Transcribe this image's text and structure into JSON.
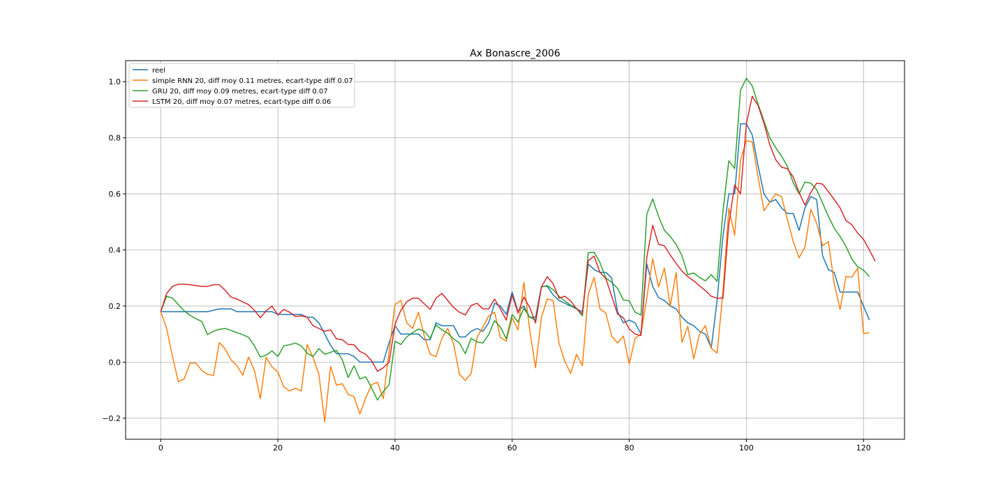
{
  "chart_data": {
    "type": "line",
    "title": "Ax Bonascre_2006",
    "xlabel": "",
    "ylabel": "",
    "xlim": [
      -6,
      127
    ],
    "ylim": [
      -0.275,
      1.075
    ],
    "xticks": [
      0,
      20,
      40,
      60,
      80,
      100,
      120
    ],
    "yticks": [
      -0.2,
      0.0,
      0.2,
      0.4,
      0.6,
      0.8,
      1.0
    ],
    "xtick_labels": [
      "0",
      "20",
      "40",
      "60",
      "80",
      "100",
      "120"
    ],
    "ytick_labels": [
      "−0.2",
      "0.0",
      "0.2",
      "0.4",
      "0.6",
      "0.8",
      "1.0"
    ],
    "grid": true,
    "legend_position": "top-left",
    "series": [
      {
        "name": "reel",
        "color": "#1f77b4",
        "values": [
          0.18,
          0.18,
          0.18,
          0.18,
          0.18,
          0.18,
          0.18,
          0.18,
          0.18,
          0.185,
          0.19,
          0.19,
          0.19,
          0.18,
          0.18,
          0.18,
          0.18,
          0.18,
          0.18,
          0.18,
          0.17,
          0.17,
          0.17,
          0.17,
          0.17,
          0.16,
          0.16,
          0.14,
          0.1,
          0.06,
          0.03,
          0.03,
          0.03,
          0.02,
          0.0,
          0.0,
          0.0,
          0.0,
          0.0,
          0.07,
          0.13,
          0.1,
          0.1,
          0.1,
          0.1,
          0.08,
          0.08,
          0.14,
          0.13,
          0.13,
          0.13,
          0.09,
          0.09,
          0.11,
          0.12,
          0.11,
          0.14,
          0.21,
          0.2,
          0.17,
          0.25,
          0.18,
          0.2,
          0.16,
          0.16,
          0.27,
          0.27,
          0.24,
          0.22,
          0.21,
          0.2,
          0.19,
          0.18,
          0.35,
          0.33,
          0.32,
          0.32,
          0.3,
          0.18,
          0.14,
          0.15,
          0.14,
          0.1,
          0.35,
          0.27,
          0.23,
          0.22,
          0.2,
          0.19,
          0.16,
          0.14,
          0.13,
          0.11,
          0.1,
          0.05,
          0.22,
          0.45,
          0.6,
          0.6,
          0.85,
          0.85,
          0.81,
          0.7,
          0.6,
          0.57,
          0.58,
          0.55,
          0.53,
          0.53,
          0.47,
          0.55,
          0.59,
          0.58,
          0.38,
          0.33,
          0.32,
          0.25,
          0.25,
          0.25,
          0.25,
          0.2,
          0.15
        ]
      },
      {
        "name": "simple RNN 20, diff moy 0.11 metres, ecart-type diff 0.07",
        "color": "#ff7f0e",
        "values": [
          0.18,
          0.12,
          0.02,
          -0.07,
          -0.06,
          -0.003,
          -0.003,
          -0.03,
          -0.043,
          -0.048,
          0.07,
          0.047,
          0.008,
          -0.012,
          -0.047,
          0.018,
          -0.03,
          -0.13,
          0.017,
          -0.017,
          -0.035,
          -0.088,
          -0.103,
          -0.093,
          -0.103,
          0.063,
          0.017,
          -0.043,
          -0.213,
          -0.015,
          -0.082,
          -0.077,
          -0.115,
          -0.123,
          -0.185,
          -0.128,
          -0.08,
          -0.072,
          -0.13,
          0.04,
          0.205,
          0.22,
          0.14,
          0.12,
          0.178,
          0.093,
          0.028,
          0.02,
          0.085,
          0.12,
          0.065,
          -0.043,
          -0.065,
          -0.04,
          0.088,
          0.125,
          0.165,
          0.178,
          0.088,
          0.075,
          0.158,
          0.115,
          0.285,
          0.115,
          -0.02,
          0.16,
          0.225,
          0.22,
          0.068,
          0.002,
          -0.04,
          0.028,
          -0.013,
          0.242,
          0.302,
          0.19,
          0.175,
          0.093,
          0.068,
          0.093,
          -0.007,
          0.085,
          0.1,
          0.23,
          0.368,
          0.268,
          0.335,
          0.2,
          0.32,
          0.07,
          0.128,
          0.012,
          0.1,
          0.13,
          0.05,
          0.032,
          0.252,
          0.548,
          0.452,
          0.72,
          0.79,
          0.785,
          0.66,
          0.54,
          0.57,
          0.6,
          0.59,
          0.51,
          0.43,
          0.372,
          0.41,
          0.545,
          0.495,
          0.415,
          0.43,
          0.28,
          0.188,
          0.305,
          0.303,
          0.335,
          0.102,
          0.105
        ]
      },
      {
        "name": "GRU 20, diff moy 0.09 metres, ecart-type diff 0.07",
        "color": "#2ca02c",
        "values": [
          0.18,
          0.235,
          0.228,
          0.205,
          0.183,
          0.167,
          0.155,
          0.145,
          0.098,
          0.11,
          0.117,
          0.12,
          0.113,
          0.105,
          0.098,
          0.088,
          0.058,
          0.018,
          0.025,
          0.04,
          0.02,
          0.058,
          0.062,
          0.068,
          0.058,
          0.032,
          0.02,
          0.048,
          0.028,
          0.035,
          0.042,
          0.008,
          -0.055,
          -0.013,
          -0.06,
          -0.052,
          -0.092,
          -0.135,
          -0.105,
          -0.08,
          0.075,
          0.063,
          0.09,
          0.105,
          0.118,
          0.11,
          0.085,
          0.133,
          0.115,
          0.103,
          0.083,
          0.068,
          0.03,
          0.085,
          0.072,
          0.068,
          0.098,
          0.148,
          0.125,
          0.083,
          0.17,
          0.143,
          0.192,
          0.16,
          0.15,
          0.268,
          0.273,
          0.258,
          0.235,
          0.218,
          0.203,
          0.192,
          0.165,
          0.39,
          0.392,
          0.355,
          0.3,
          0.285,
          0.263,
          0.222,
          0.218,
          0.178,
          0.168,
          0.528,
          0.582,
          0.52,
          0.47,
          0.448,
          0.42,
          0.38,
          0.312,
          0.318,
          0.302,
          0.29,
          0.312,
          0.288,
          0.538,
          0.718,
          0.69,
          0.97,
          1.012,
          0.985,
          0.92,
          0.86,
          0.8,
          0.765,
          0.735,
          0.698,
          0.64,
          0.6,
          0.642,
          0.638,
          0.615,
          0.568,
          0.52,
          0.478,
          0.448,
          0.413,
          0.368,
          0.34,
          0.328,
          0.305
        ]
      },
      {
        "name": "LSTM 20, diff moy 0.07 metres, ecart-type diff 0.06",
        "color": "#d62728",
        "values": [
          0.18,
          0.245,
          0.27,
          0.278,
          0.278,
          0.276,
          0.273,
          0.27,
          0.27,
          0.276,
          0.276,
          0.256,
          0.232,
          0.225,
          0.215,
          0.205,
          0.185,
          0.158,
          0.183,
          0.2,
          0.168,
          0.188,
          0.178,
          0.163,
          0.165,
          0.16,
          0.13,
          0.12,
          0.11,
          0.115,
          0.083,
          0.08,
          0.063,
          0.062,
          0.038,
          0.028,
          0.005,
          -0.033,
          -0.02,
          0.0,
          0.135,
          0.185,
          0.215,
          0.228,
          0.228,
          0.208,
          0.188,
          0.228,
          0.245,
          0.22,
          0.195,
          0.178,
          0.168,
          0.202,
          0.21,
          0.19,
          0.19,
          0.225,
          0.19,
          0.15,
          0.24,
          0.175,
          0.232,
          0.195,
          0.14,
          0.268,
          0.305,
          0.28,
          0.228,
          0.235,
          0.218,
          0.19,
          0.172,
          0.362,
          0.378,
          0.32,
          0.298,
          0.235,
          0.172,
          0.158,
          0.118,
          0.1,
          0.095,
          0.375,
          0.488,
          0.42,
          0.415,
          0.382,
          0.352,
          0.325,
          0.305,
          0.29,
          0.272,
          0.255,
          0.235,
          0.228,
          0.228,
          0.492,
          0.632,
          0.6,
          0.85,
          0.948,
          0.915,
          0.852,
          0.775,
          0.722,
          0.695,
          0.69,
          0.66,
          0.605,
          0.56,
          0.605,
          0.638,
          0.635,
          0.608,
          0.58,
          0.55,
          0.505,
          0.49,
          0.46,
          0.438,
          0.4,
          0.36
        ]
      }
    ]
  }
}
